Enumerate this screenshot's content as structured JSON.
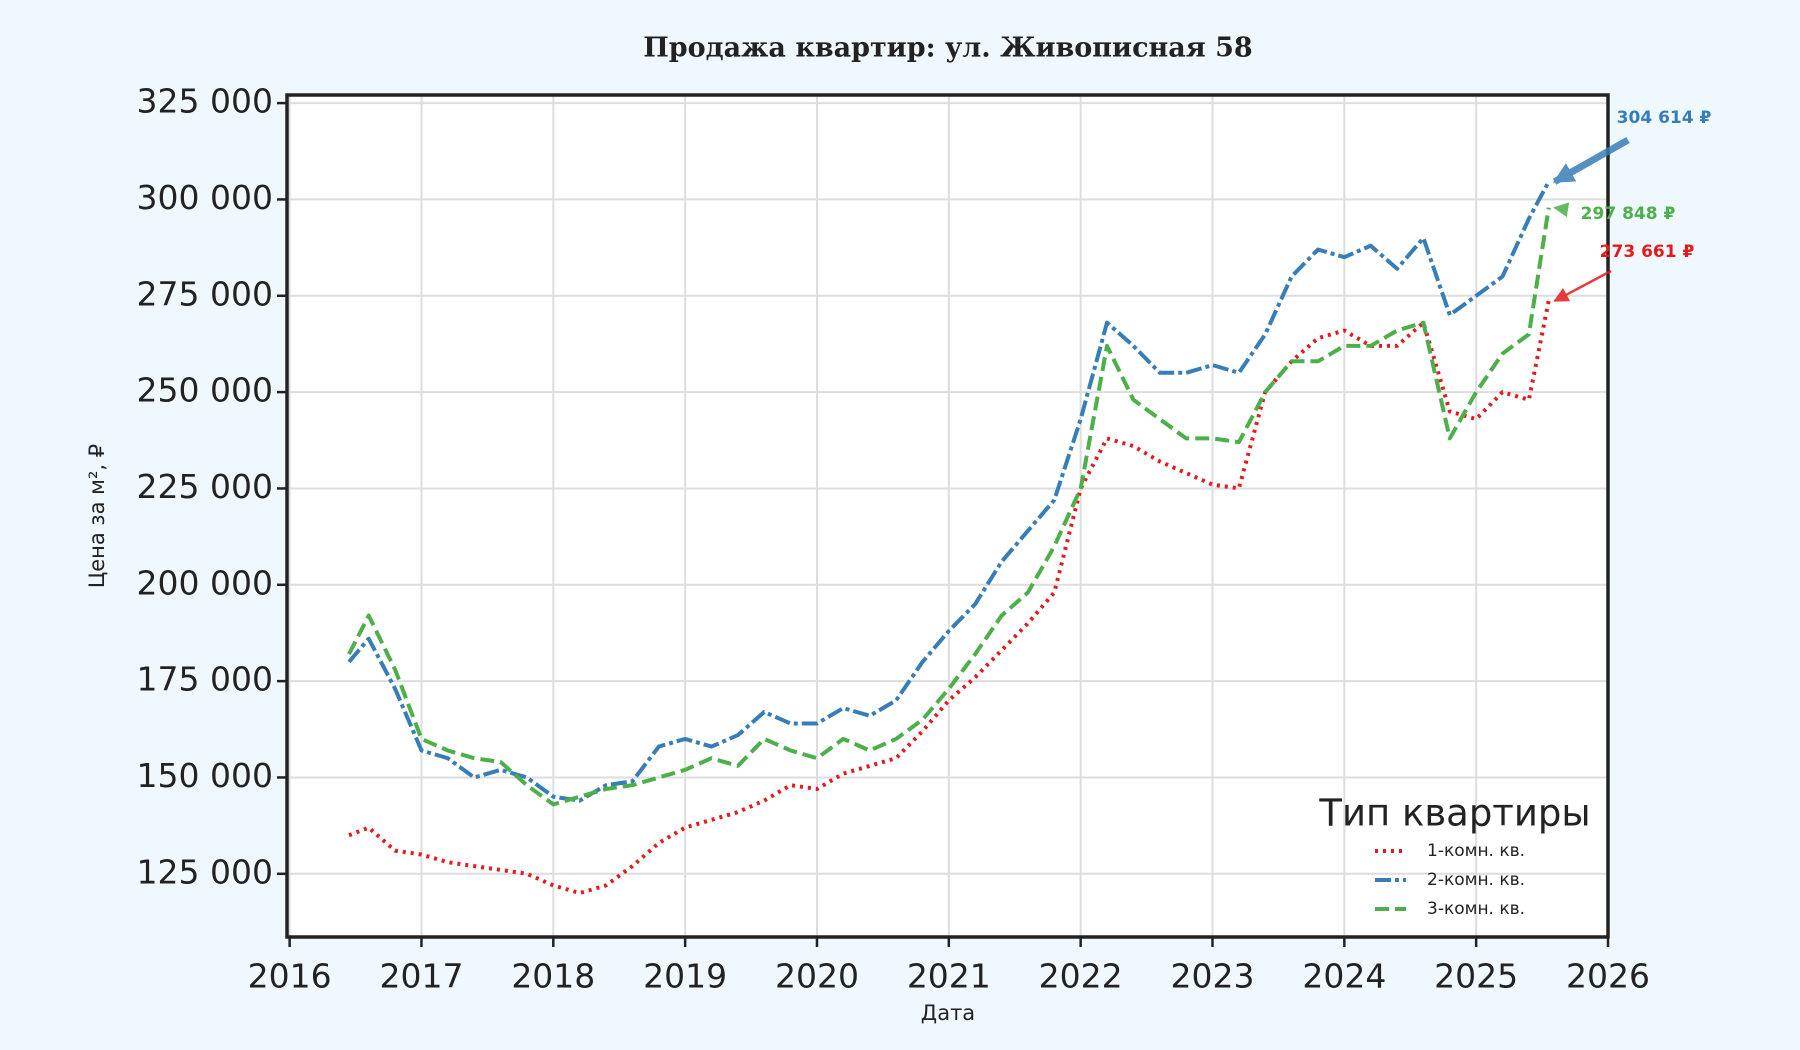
{
  "chart_data": {
    "type": "line",
    "title": "Продажа квартир: ул. Живописная 58",
    "x_label": "Дата",
    "y_label": "Цена за м², ₽",
    "xlim": [
      2015.98,
      2026.0
    ],
    "ylim": [
      108600,
      327100
    ],
    "xticks": [
      2016,
      2017,
      2018,
      2019,
      2020,
      2021,
      2022,
      2023,
      2024,
      2025,
      2026
    ],
    "yticks": [
      {
        "value": 125000,
        "label": "125 000"
      },
      {
        "value": 150000,
        "label": "150 000"
      },
      {
        "value": 175000,
        "label": "175 000"
      },
      {
        "value": 200000,
        "label": "200 000"
      },
      {
        "value": 225000,
        "label": "225 000"
      },
      {
        "value": 250000,
        "label": "250 000"
      },
      {
        "value": 275000,
        "label": "275 000"
      },
      {
        "value": 300000,
        "label": "300 000"
      },
      {
        "value": 325000,
        "label": "325 000"
      }
    ],
    "grid": true,
    "legend_title": "Тип квартиры",
    "legend_position": "lower-right",
    "x": [
      2016.45,
      2016.6,
      2016.8,
      2017.0,
      2017.2,
      2017.4,
      2017.6,
      2017.8,
      2018.0,
      2018.2,
      2018.4,
      2018.6,
      2018.8,
      2019.0,
      2019.2,
      2019.4,
      2019.6,
      2019.8,
      2020.0,
      2020.2,
      2020.4,
      2020.6,
      2020.8,
      2021.0,
      2021.2,
      2021.4,
      2021.6,
      2021.8,
      2022.0,
      2022.2,
      2022.4,
      2022.6,
      2022.8,
      2023.0,
      2023.2,
      2023.4,
      2023.6,
      2023.8,
      2024.0,
      2024.2,
      2024.4,
      2024.6,
      2024.8,
      2025.0,
      2025.2,
      2025.4,
      2025.55
    ],
    "series": [
      {
        "name": "1-комн. кв.",
        "color": "#e41a1c",
        "style": "dotted",
        "values": [
          135000,
          137000,
          131000,
          130000,
          128000,
          127000,
          126000,
          125000,
          122000,
          120000,
          122000,
          127000,
          133000,
          137000,
          139000,
          141000,
          144000,
          148000,
          147000,
          151000,
          153000,
          155000,
          162000,
          170000,
          176000,
          183000,
          190000,
          198000,
          225000,
          238000,
          236000,
          232000,
          229000,
          226000,
          225000,
          250000,
          258000,
          264000,
          266000,
          262000,
          262000,
          268000,
          245000,
          243000,
          250000,
          248000,
          273661
        ]
      },
      {
        "name": "2-комн. кв.",
        "color": "#377eb8",
        "style": "dashdot",
        "values": [
          180000,
          186000,
          173000,
          157000,
          155000,
          150000,
          152000,
          150000,
          145000,
          144000,
          148000,
          149000,
          158000,
          160000,
          158000,
          161000,
          167000,
          164000,
          164000,
          168000,
          166000,
          170000,
          180000,
          188000,
          195000,
          206000,
          214000,
          222000,
          243000,
          268000,
          262000,
          255000,
          255000,
          257000,
          255000,
          265000,
          280000,
          287000,
          285000,
          288000,
          282000,
          290000,
          270000,
          275000,
          280000,
          295000,
          304614
        ]
      },
      {
        "name": "3-комн. кв.",
        "color": "#4daf4a",
        "style": "dashed",
        "values": [
          182000,
          192000,
          178000,
          160000,
          157000,
          155000,
          154000,
          148000,
          143000,
          145000,
          147000,
          148000,
          150000,
          152000,
          155000,
          153000,
          160000,
          157000,
          155000,
          160000,
          157000,
          160000,
          165000,
          173000,
          182000,
          192000,
          198000,
          210000,
          225000,
          262000,
          248000,
          243000,
          238000,
          238000,
          237000,
          250000,
          258000,
          258000,
          262000,
          262000,
          266000,
          268000,
          238000,
          250000,
          260000,
          265000,
          297848
        ]
      }
    ],
    "annotations": [
      {
        "text": "273 661 ₽",
        "x": 2025.55,
        "value": 273661
      },
      {
        "text": "304 614 ₽",
        "x": 2025.55,
        "value": 304614
      },
      {
        "text": "297 848 ₽",
        "x": 2025.55,
        "value": 297848
      }
    ]
  }
}
